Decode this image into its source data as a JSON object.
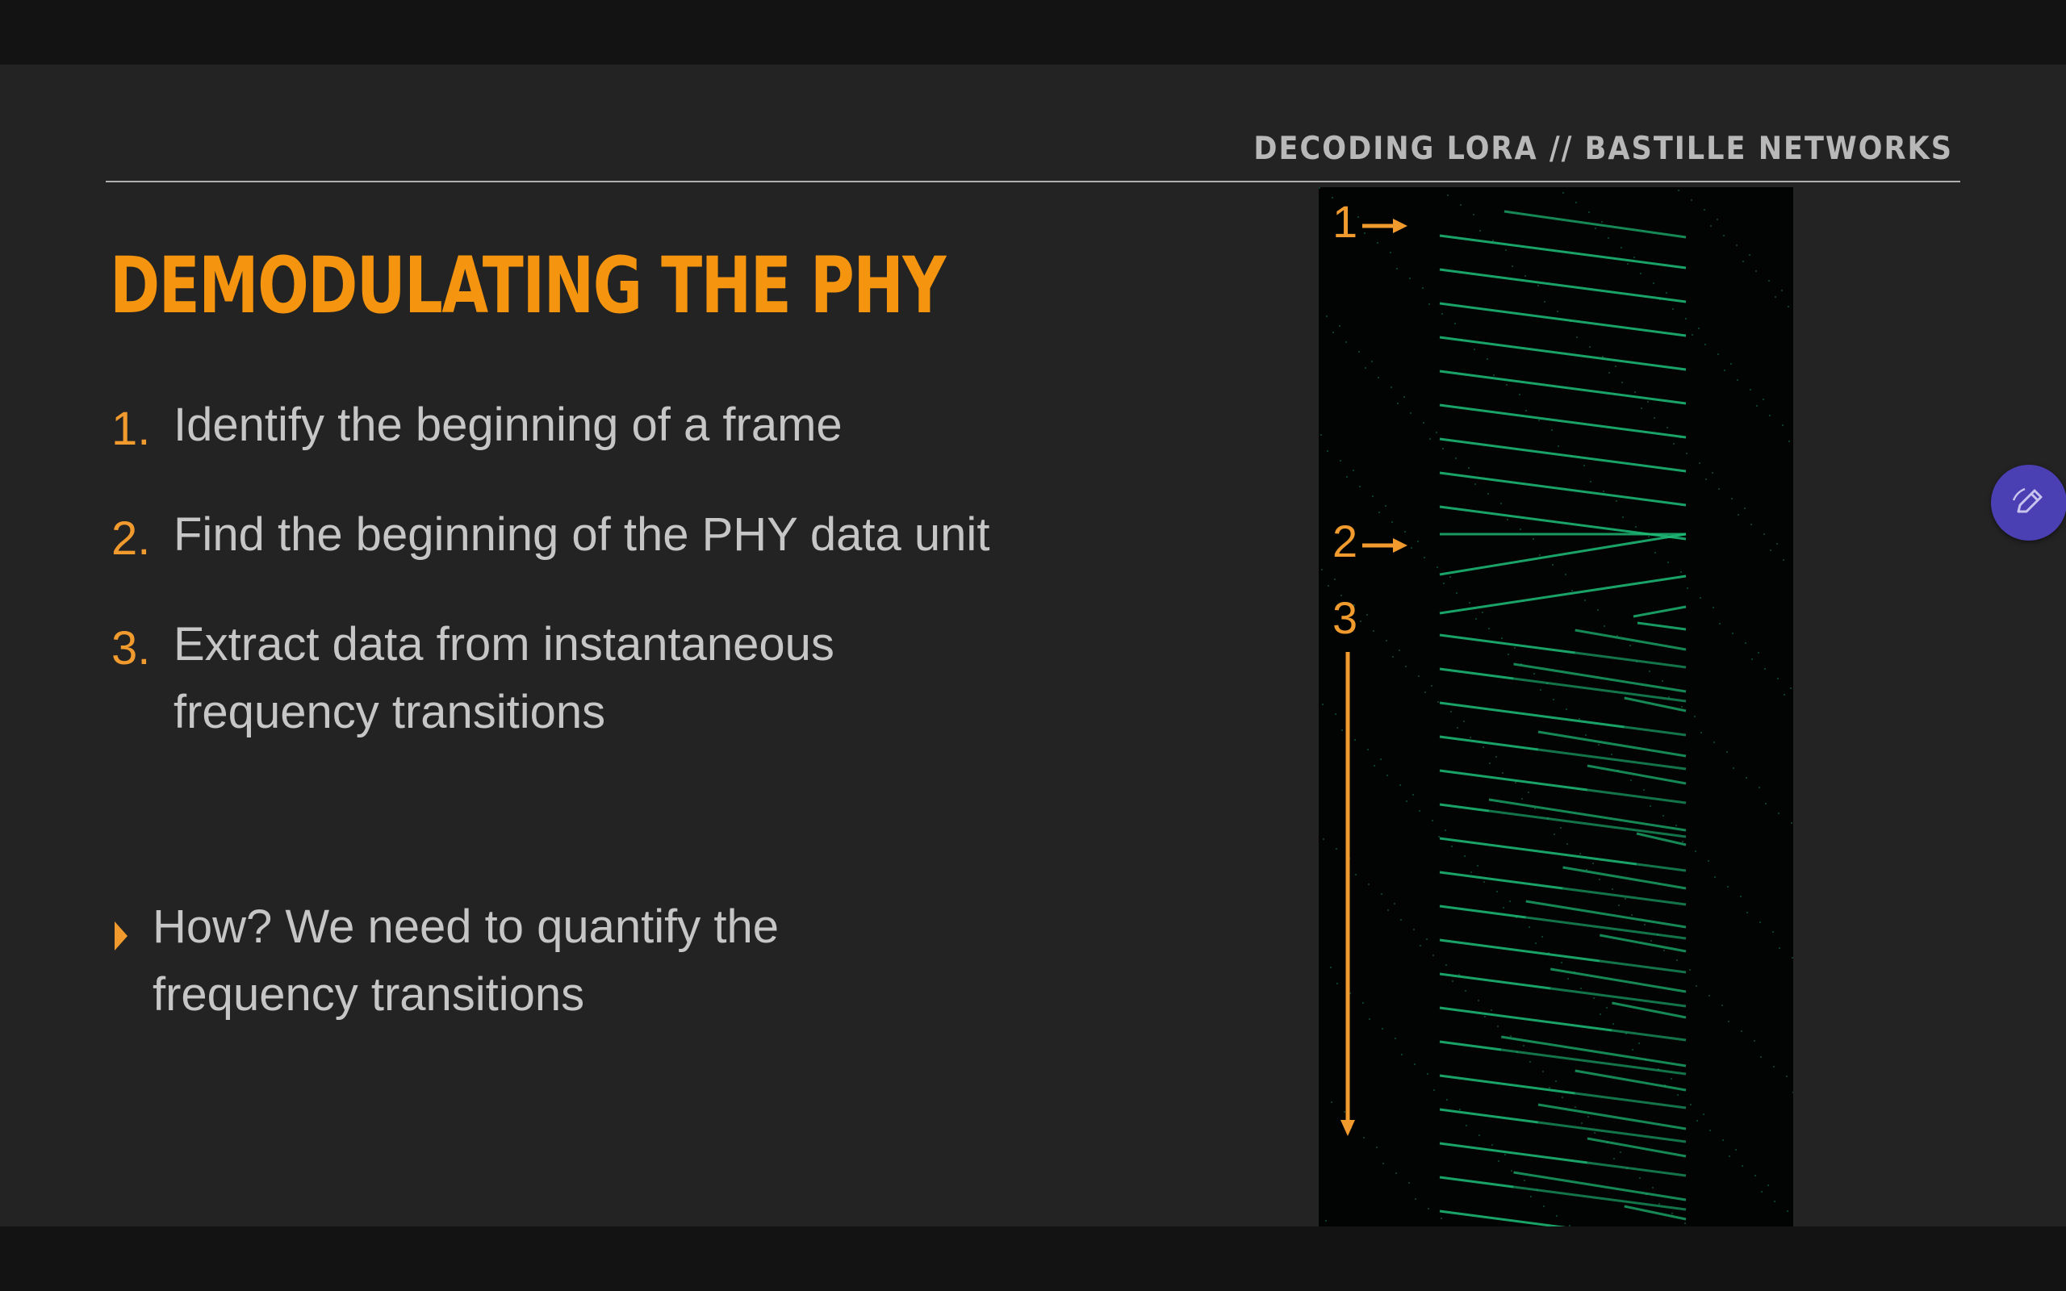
{
  "header": {
    "label": "DECODING LORA // BASTILLE NETWORKS"
  },
  "slide": {
    "title": "DEMODULATING THE PHY"
  },
  "steps": [
    {
      "number": "1.",
      "line1": "Identify the beginning of a frame",
      "line2": ""
    },
    {
      "number": "2.",
      "line1": "Find the beginning of the PHY data unit",
      "line2": ""
    },
    {
      "number": "3.",
      "line1": "Extract data from instantaneous",
      "line2": "frequency transitions"
    }
  ],
  "bullet": {
    "line1": "How?  We need to quantify the",
    "line2": "frequency transitions"
  },
  "spectrogram": {
    "markers": [
      "1",
      "2",
      "3"
    ],
    "marker_color": "#f19a2e",
    "chirp_color": "#1fc07a"
  },
  "fab": {
    "icon": "pen-edit-icon"
  },
  "colors": {
    "background": "#232323",
    "accent": "#f5950f",
    "text": "#c6c6c6"
  }
}
